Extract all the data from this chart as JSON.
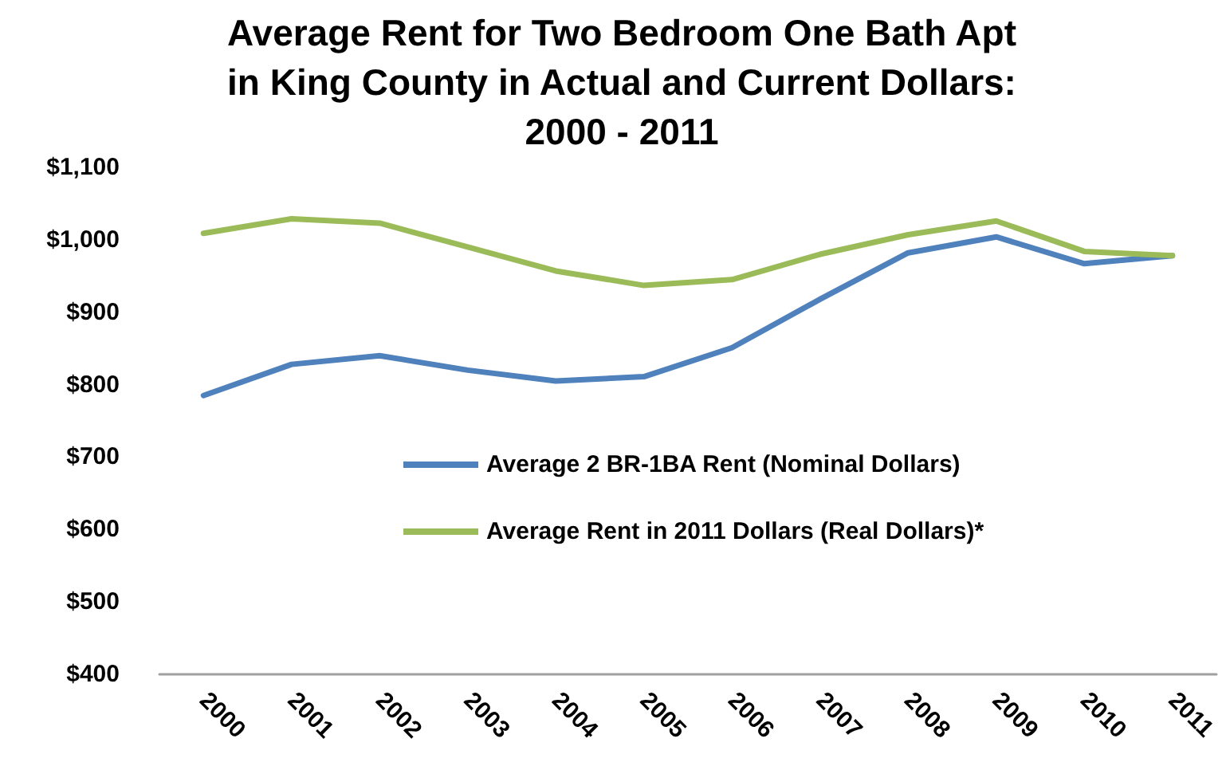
{
  "chart_data": {
    "type": "line",
    "title": "Average Rent for Two Bedroom One Bath Apt\nin King County in Actual and Current Dollars:\n2000 - 2011",
    "categories": [
      "2000",
      "2001",
      "2002",
      "2003",
      "2004",
      "2005",
      "2006",
      "2007",
      "2008",
      "2009",
      "2010",
      "2011"
    ],
    "series": [
      {
        "name": "Average 2 BR-1BA Rent (Nominal Dollars)",
        "color": "#4f81bd",
        "values": [
          785,
          828,
          840,
          820,
          805,
          811,
          851,
          918,
          982,
          1004,
          967,
          978
        ]
      },
      {
        "name": "Average Rent in 2011 Dollars (Real Dollars)*",
        "color": "#9bbb59",
        "values": [
          1009,
          1029,
          1023,
          990,
          957,
          937,
          945,
          980,
          1007,
          1026,
          984,
          978
        ]
      }
    ],
    "ylim": [
      400,
      1100
    ],
    "yticks": [
      {
        "value": 400,
        "label": "$400"
      },
      {
        "value": 500,
        "label": "$500"
      },
      {
        "value": 600,
        "label": "$600"
      },
      {
        "value": 700,
        "label": "$700"
      },
      {
        "value": 800,
        "label": "$800"
      },
      {
        "value": 900,
        "label": "$900"
      },
      {
        "value": 1000,
        "label": "$1,000"
      },
      {
        "value": 1100,
        "label": "$1,100"
      }
    ],
    "grid": false,
    "legend": "center",
    "marker": "none",
    "line_style": "solid"
  }
}
